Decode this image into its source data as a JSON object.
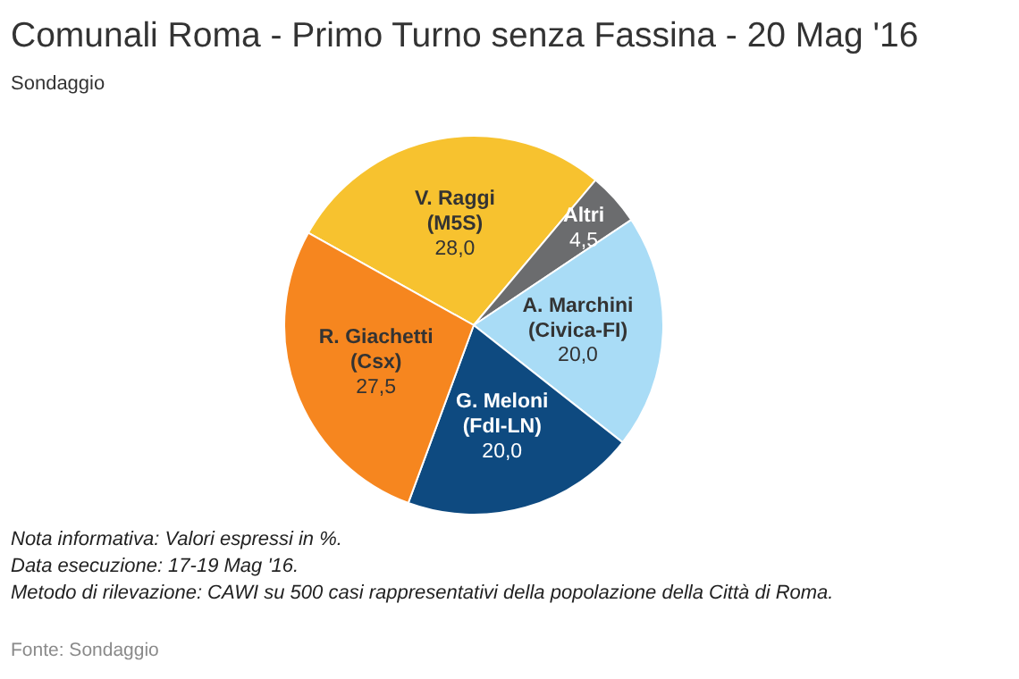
{
  "chart_data": {
    "type": "pie",
    "title": "Comunali Roma - Primo Turno senza Fassina - 20 Mag '16",
    "subtitle": "Sondaggio",
    "categories": [
      "V. Raggi\n(M5S)",
      "Altri",
      "A. Marchini\n(Civica-FI)",
      "G. Meloni\n(FdI-LN)",
      "R. Giachetti\n(Csx)"
    ],
    "values": [
      28.0,
      4.5,
      20.0,
      20.0,
      27.5
    ],
    "value_labels": [
      "28,0",
      "4,5",
      "20,0",
      "20,0",
      "27,5"
    ],
    "colors": [
      "#f7c22f",
      "#6b6c6e",
      "#a9dcf6",
      "#0e4a80",
      "#f6861f"
    ],
    "annotations": [
      "Nota informativa: Valori espressi in %.",
      "Data esecuzione: 17-19 Mag '16.",
      "Metodo di rilevazione: CAWI su 500 casi rappresentativi della popolazione della Città di Roma.",
      "Fonte: Sondaggio"
    ]
  }
}
